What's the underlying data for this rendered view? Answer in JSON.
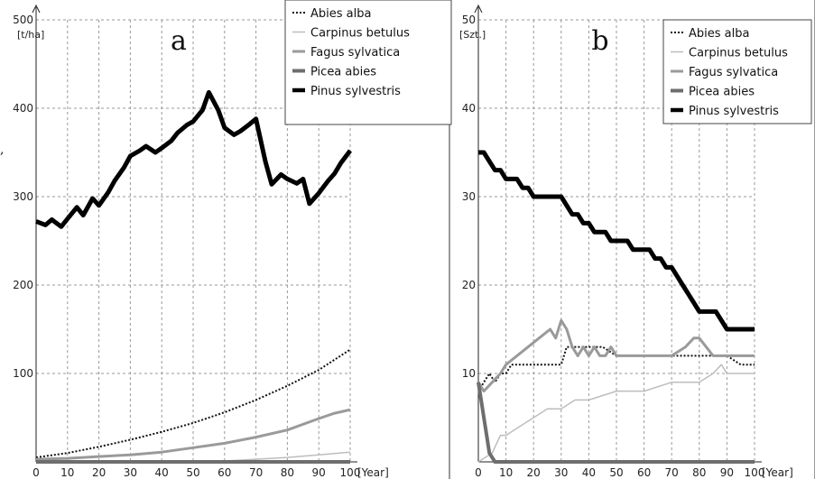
{
  "chart_data": [
    {
      "type": "line",
      "panel_letter": "a",
      "y_unit": "[t/ha]",
      "x_unit": "[Year]",
      "xlim": [
        0,
        100
      ],
      "ylim": [
        0,
        500
      ],
      "x_ticks": [
        "0",
        "10",
        "20",
        "30",
        "40",
        "50",
        "60",
        "70",
        "80",
        "90",
        "100"
      ],
      "y_ticks": [
        "100",
        "200",
        "300",
        "400",
        "500"
      ],
      "grid": true,
      "legend_position": "top-right",
      "series": [
        {
          "name": "Abies alba",
          "style": "dotted",
          "color": "#111111",
          "x": [
            0,
            10,
            20,
            30,
            40,
            50,
            60,
            70,
            80,
            90,
            100
          ],
          "y": [
            5,
            10,
            17,
            25,
            34,
            44,
            56,
            70,
            86,
            104,
            127
          ]
        },
        {
          "name": "Carpinus betulus",
          "style": "thin",
          "color": "#bdbdbd",
          "x": [
            0,
            50,
            60,
            70,
            80,
            90,
            100
          ],
          "y": [
            0,
            0,
            1,
            3,
            5,
            8,
            11
          ]
        },
        {
          "name": "Fagus sylvatica",
          "style": "medium",
          "color": "#9a9a9a",
          "x": [
            0,
            10,
            20,
            30,
            40,
            50,
            60,
            70,
            80,
            90,
            95,
            100
          ],
          "y": [
            3,
            4,
            6,
            8,
            11,
            16,
            21,
            28,
            36,
            49,
            55,
            59
          ]
        },
        {
          "name": "Picea abies",
          "style": "thick",
          "color": "#6e6e6e",
          "x": [
            0,
            100
          ],
          "y": [
            0,
            0
          ]
        },
        {
          "name": "Pinus sylvestris",
          "style": "bold",
          "color": "#000000",
          "x": [
            0,
            3,
            5,
            8,
            10,
            13,
            15,
            18,
            20,
            23,
            25,
            28,
            30,
            33,
            35,
            38,
            40,
            43,
            45,
            48,
            50,
            53,
            55,
            58,
            60,
            63,
            65,
            68,
            70,
            73,
            75,
            78,
            80,
            83,
            85,
            87,
            90,
            93,
            95,
            97,
            100
          ],
          "y": [
            272,
            268,
            274,
            266,
            275,
            288,
            279,
            298,
            290,
            305,
            318,
            333,
            346,
            352,
            357,
            350,
            355,
            363,
            372,
            381,
            385,
            398,
            418,
            398,
            378,
            370,
            374,
            382,
            388,
            340,
            314,
            325,
            320,
            315,
            320,
            292,
            304,
            318,
            326,
            338,
            352
          ]
        }
      ]
    },
    {
      "type": "line",
      "panel_letter": "b",
      "y_unit": "[Szt.]",
      "x_unit": "[Year]",
      "xlim": [
        0,
        100
      ],
      "ylim": [
        0,
        50
      ],
      "x_ticks": [
        "0",
        "10",
        "20",
        "30",
        "40",
        "50",
        "60",
        "70",
        "80",
        "90",
        "100"
      ],
      "y_ticks": [
        "10",
        "20",
        "30",
        "40",
        "50"
      ],
      "grid": true,
      "legend_position": "top-right",
      "series": [
        {
          "name": "Abies alba",
          "style": "dotted",
          "color": "#111111",
          "x": [
            0,
            2,
            4,
            6,
            8,
            10,
            12,
            15,
            30,
            32,
            35,
            45,
            50,
            60,
            70,
            80,
            90,
            95,
            100
          ],
          "y": [
            8,
            9,
            10,
            9,
            10,
            10,
            11,
            11,
            11,
            13,
            13,
            13,
            12,
            12,
            12,
            12,
            12,
            11,
            11
          ]
        },
        {
          "name": "Carpinus betulus",
          "style": "thin",
          "color": "#bdbdbd",
          "x": [
            0,
            5,
            8,
            10,
            15,
            20,
            25,
            30,
            35,
            40,
            50,
            60,
            70,
            80,
            85,
            88,
            90,
            95,
            100
          ],
          "y": [
            0,
            1,
            3,
            3,
            4,
            5,
            6,
            6,
            7,
            7,
            8,
            8,
            9,
            9,
            10,
            11,
            10,
            10,
            10
          ]
        },
        {
          "name": "Fagus sylvatica",
          "style": "medium",
          "color": "#9a9a9a",
          "x": [
            0,
            2,
            5,
            8,
            10,
            14,
            18,
            22,
            26,
            28,
            30,
            32,
            34,
            36,
            38,
            40,
            42,
            44,
            46,
            48,
            50,
            52,
            55,
            60,
            65,
            70,
            75,
            78,
            80,
            85,
            90,
            95,
            100
          ],
          "y": [
            9,
            8,
            9,
            10,
            11,
            12,
            13,
            14,
            15,
            14,
            16,
            15,
            13,
            12,
            13,
            12,
            13,
            12,
            12,
            13,
            12,
            12,
            12,
            12,
            12,
            12,
            13,
            14,
            14,
            12,
            12,
            12,
            12
          ]
        },
        {
          "name": "Picea abies",
          "style": "thick",
          "color": "#6e6e6e",
          "x": [
            0,
            1,
            2,
            3,
            4,
            6,
            8,
            10,
            100
          ],
          "y": [
            9,
            7,
            5,
            3,
            1,
            0,
            0,
            0,
            0
          ]
        },
        {
          "name": "Pinus sylvestris",
          "style": "bold",
          "color": "#000000",
          "x": [
            0,
            2,
            4,
            6,
            8,
            10,
            12,
            14,
            16,
            18,
            20,
            22,
            24,
            26,
            28,
            30,
            32,
            34,
            36,
            38,
            40,
            42,
            44,
            46,
            48,
            50,
            52,
            54,
            56,
            58,
            60,
            62,
            64,
            66,
            68,
            70,
            72,
            74,
            76,
            78,
            80,
            82,
            84,
            86,
            88,
            90,
            92,
            94,
            96,
            98,
            100
          ],
          "y": [
            35,
            35,
            34,
            33,
            33,
            32,
            32,
            32,
            31,
            31,
            30,
            30,
            30,
            30,
            30,
            30,
            29,
            28,
            28,
            27,
            27,
            26,
            26,
            26,
            25,
            25,
            25,
            25,
            24,
            24,
            24,
            24,
            23,
            23,
            22,
            22,
            21,
            20,
            19,
            18,
            17,
            17,
            17,
            17,
            16,
            15,
            15,
            15,
            15,
            15,
            15
          ]
        }
      ]
    }
  ],
  "stray_mark": ","
}
